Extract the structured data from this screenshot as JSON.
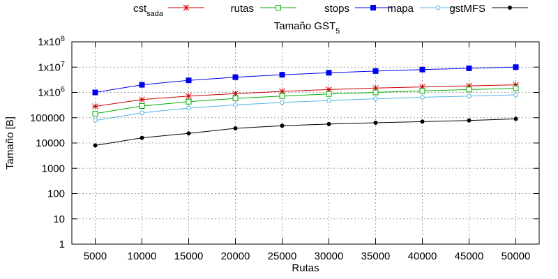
{
  "chart_data": {
    "type": "line",
    "title_main": "Tamaño GST",
    "title_sub": "5",
    "xlabel": "Rutas",
    "ylabel": "Tamaño [B]",
    "y_scale": "log",
    "ylim": [
      1,
      100000000
    ],
    "xlim": [
      2500,
      52500
    ],
    "grid": true,
    "legend_position": "top",
    "x": [
      5000,
      10000,
      15000,
      20000,
      25000,
      30000,
      35000,
      40000,
      45000,
      50000
    ],
    "x_tick_labels": [
      "5000",
      "10000",
      "15000",
      "20000",
      "25000",
      "30000",
      "35000",
      "40000",
      "45000",
      "50000"
    ],
    "y_ticks": [
      {
        "value": 1,
        "label": "1"
      },
      {
        "value": 10,
        "label": "10"
      },
      {
        "value": 100,
        "label": "100"
      },
      {
        "value": 1000,
        "label": "1000"
      },
      {
        "value": 10000,
        "label": "10000"
      },
      {
        "value": 100000,
        "label": "100000"
      },
      {
        "value": 1000000,
        "label": "1x10",
        "sup": "6"
      },
      {
        "value": 10000000,
        "label": "1x10",
        "sup": "7"
      },
      {
        "value": 100000000,
        "label": "1x10",
        "sup": "8"
      }
    ],
    "series": [
      {
        "name": "cst",
        "name_sub": "sada",
        "color": "#cc0000",
        "marker": "star",
        "values": [
          280000,
          520000,
          720000,
          900000,
          1100000,
          1300000,
          1480000,
          1650000,
          1820000,
          2000000
        ]
      },
      {
        "name": "rutas",
        "color": "#00b000",
        "marker": "square-open",
        "values": [
          145000,
          290000,
          430000,
          580000,
          720000,
          870000,
          1000000,
          1150000,
          1300000,
          1450000
        ]
      },
      {
        "name": "stops",
        "color": "#0000ee",
        "marker": "square-filled",
        "values": [
          1000000,
          2000000,
          3000000,
          4000000,
          5000000,
          6000000,
          7000000,
          8000000,
          9000000,
          10000000
        ]
      },
      {
        "name": "mapa",
        "color": "#55b4e6",
        "marker": "circle-open",
        "values": [
          78000,
          156000,
          240000,
          320000,
          400000,
          480000,
          560000,
          640000,
          720000,
          800000
        ]
      },
      {
        "name": "gstMFS",
        "color": "#000000",
        "marker": "circle-filled",
        "values": [
          8000,
          16000,
          24000,
          38000,
          48000,
          56000,
          63000,
          70000,
          78000,
          90000
        ]
      }
    ]
  }
}
